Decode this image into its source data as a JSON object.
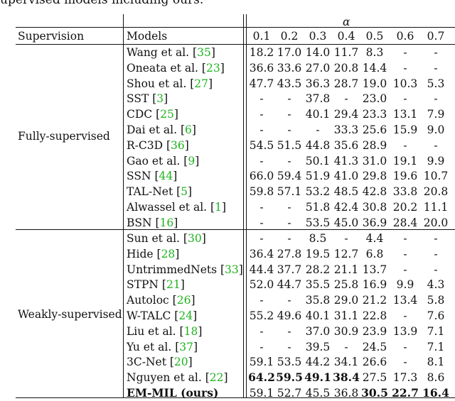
{
  "caption": "upervised models including ours.",
  "header": {
    "alpha_symbol": "α",
    "supervision": "Supervision",
    "models": "Models",
    "thresholds": [
      "0.1",
      "0.2",
      "0.3",
      "0.4",
      "0.5",
      "0.6",
      "0.7"
    ]
  },
  "groups": [
    {
      "label": "Fully-supervised",
      "rows": [
        {
          "name": "Wang et al. ",
          "ref": "35",
          "values": [
            "18.2",
            "17.0",
            "14.0",
            "11.7",
            "8.3",
            "-",
            "-"
          ]
        },
        {
          "name": "Oneata et al. ",
          "ref": "23",
          "values": [
            "36.6",
            "33.6",
            "27.0",
            "20.8",
            "14.4",
            "-",
            "-"
          ]
        },
        {
          "name": "Shou et al. ",
          "ref": "27",
          "values": [
            "47.7",
            "43.5",
            "36.3",
            "28.7",
            "19.0",
            "10.3",
            "5.3"
          ]
        },
        {
          "name": "SST ",
          "ref": "3",
          "values": [
            "-",
            "-",
            "37.8",
            "-",
            "23.0",
            "-",
            "-"
          ]
        },
        {
          "name": "CDC ",
          "ref": "25",
          "values": [
            "-",
            "-",
            "40.1",
            "29.4",
            "23.3",
            "13.1",
            "7.9"
          ]
        },
        {
          "name": "Dai et al. ",
          "ref": "6",
          "values": [
            "-",
            "-",
            "-",
            "33.3",
            "25.6",
            "15.9",
            "9.0"
          ]
        },
        {
          "name": "R-C3D ",
          "ref": "36",
          "values": [
            "54.5",
            "51.5",
            "44.8",
            "35.6",
            "28.9",
            "-",
            "-"
          ]
        },
        {
          "name": "Gao et al. ",
          "ref": "9",
          "values": [
            "-",
            "-",
            "50.1",
            "41.3",
            "31.0",
            "19.1",
            "9.9"
          ]
        },
        {
          "name": "SSN ",
          "ref": "44",
          "values": [
            "66.0",
            "59.4",
            "51.9",
            "41.0",
            "29.8",
            "19.6",
            "10.7"
          ]
        },
        {
          "name": "TAL-Net ",
          "ref": "5",
          "values": [
            "59.8",
            "57.1",
            "53.2",
            "48.5",
            "42.8",
            "33.8",
            "20.8"
          ]
        },
        {
          "name": "Alwassel et al. ",
          "ref": "1",
          "values": [
            "-",
            "-",
            "51.8",
            "42.4",
            "30.8",
            "20.2",
            "11.1"
          ]
        },
        {
          "name": "BSN ",
          "ref": "16",
          "values": [
            "-",
            "-",
            "53.5",
            "45.0",
            "36.9",
            "28.4",
            "20.0"
          ]
        }
      ]
    },
    {
      "label": "Weakly-supervised",
      "rows": [
        {
          "name": "Sun et al. ",
          "ref": "30",
          "values": [
            "-",
            "-",
            "8.5",
            "-",
            "4.4",
            "-",
            "-"
          ]
        },
        {
          "name": "Hide ",
          "ref": "28",
          "values": [
            "36.4",
            "27.8",
            "19.5",
            "12.7",
            "6.8",
            "-",
            "-"
          ]
        },
        {
          "name": "UntrimmedNets ",
          "ref": "33",
          "values": [
            "44.4",
            "37.7",
            "28.2",
            "21.1",
            "13.7",
            "-",
            "-"
          ]
        },
        {
          "name": "STPN ",
          "ref": "21",
          "values": [
            "52.0",
            "44.7",
            "35.5",
            "25.8",
            "16.9",
            "9.9",
            "4.3"
          ]
        },
        {
          "name": "Autoloc ",
          "ref": "26",
          "values": [
            "-",
            "-",
            "35.8",
            "29.0",
            "21.2",
            "13.4",
            "5.8"
          ]
        },
        {
          "name": "W-TALC ",
          "ref": "24",
          "values": [
            "55.2",
            "49.6",
            "40.1",
            "31.1",
            "22.8",
            "-",
            "7.6"
          ]
        },
        {
          "name": "Liu et al.  ",
          "ref": "18",
          "values": [
            "-",
            "-",
            "37.0",
            "30.9",
            "23.9",
            "13.9",
            "7.1"
          ]
        },
        {
          "name": "Yu et al.  ",
          "ref": "37",
          "values": [
            "-",
            "-",
            "39.5",
            "-",
            "24.5",
            "-",
            "7.1"
          ]
        },
        {
          "name": "3C-Net ",
          "ref": "20",
          "values": [
            "59.1",
            "53.5",
            "44.2",
            "34.1",
            "26.6",
            "-",
            "8.1"
          ]
        },
        {
          "name": "Nguyen et al.  ",
          "ref": "22",
          "values": [
            "64.2",
            "59.5",
            "49.1",
            "38.4",
            "27.5",
            "17.3",
            "8.6"
          ],
          "bold": [
            true,
            true,
            true,
            true,
            false,
            false,
            false
          ]
        },
        {
          "name": "EM-MIL (ours)",
          "ref": "",
          "name_bold": true,
          "values": [
            "59.1",
            "52.7",
            "45.5",
            "36.8",
            "30.5",
            "22.7",
            "16.4"
          ],
          "bold": [
            false,
            false,
            false,
            false,
            true,
            true,
            true
          ]
        }
      ]
    }
  ]
}
